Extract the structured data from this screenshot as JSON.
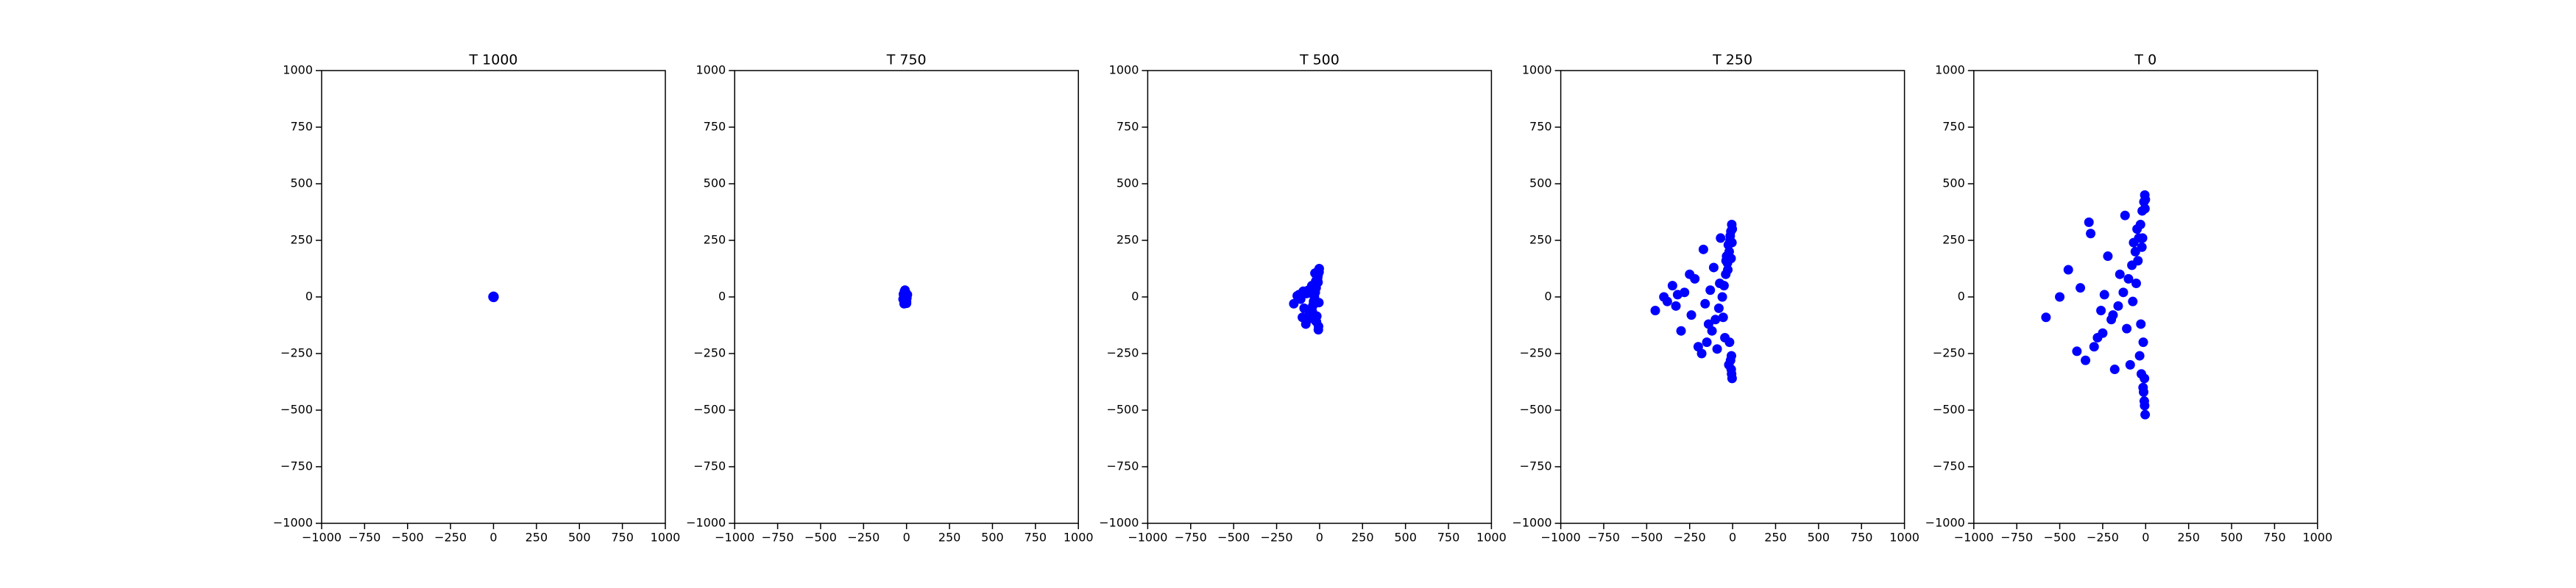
{
  "chart_data": [
    {
      "type": "scatter",
      "title": "T 1000",
      "color": "#0000ff",
      "x": [
        0,
        2,
        -2,
        1,
        -1,
        3,
        -3,
        0
      ],
      "y": [
        0,
        2,
        -1,
        -2,
        1,
        0,
        1,
        3
      ],
      "xlim": [
        -1000,
        1000
      ],
      "ylim": [
        -1000,
        1000
      ],
      "xticks": [
        {
          "value": -1000,
          "label": "−1000"
        },
        {
          "value": -750,
          "label": "−750"
        },
        {
          "value": -500,
          "label": "−500"
        },
        {
          "value": -250,
          "label": "−250"
        },
        0,
        250,
        500,
        750,
        1000
      ],
      "yticks": [
        {
          "value": -1000,
          "label": "−1000"
        },
        {
          "value": -750,
          "label": "−750"
        },
        {
          "value": -500,
          "label": "−500"
        },
        {
          "value": -250,
          "label": "−250"
        },
        0,
        250,
        500,
        750,
        1000
      ]
    },
    {
      "type": "scatter",
      "title": "T 750",
      "color": "#0000ff",
      "x": [
        -5,
        -10,
        -15,
        -20,
        0,
        5,
        -8,
        -12,
        -3,
        -18,
        -6,
        -14,
        2,
        -9,
        -4,
        0,
        -16,
        -11
      ],
      "y": [
        20,
        15,
        5,
        -10,
        -20,
        10,
        -25,
        25,
        0,
        12,
        -15,
        -30,
        -5,
        30,
        8,
        -28,
        -2,
        18
      ],
      "xlim": [
        -1000,
        1000
      ],
      "ylim": [
        -1000,
        1000
      ],
      "xticks": [
        {
          "value": -1000,
          "label": "−1000"
        },
        {
          "value": -750,
          "label": "−750"
        },
        {
          "value": -500,
          "label": "−500"
        },
        {
          "value": -250,
          "label": "−250"
        },
        0,
        250,
        500,
        750,
        1000
      ],
      "yticks": [
        {
          "value": -1000,
          "label": "−1000"
        },
        {
          "value": -750,
          "label": "−750"
        },
        {
          "value": -500,
          "label": "−500"
        },
        {
          "value": -250,
          "label": "−250"
        },
        0,
        250,
        500,
        750,
        1000
      ]
    },
    {
      "type": "scatter",
      "title": "T 500",
      "color": "#0000ff",
      "x": [
        -5,
        -8,
        -12,
        -15,
        -20,
        -25,
        -30,
        -35,
        -40,
        -50,
        -60,
        -70,
        -80,
        -100,
        -120,
        -150,
        -3,
        -6,
        -10,
        -18,
        -22,
        -28,
        -45,
        -55,
        -65,
        -90,
        -110,
        -130,
        -2,
        -7,
        -14,
        -24,
        -33,
        -42,
        -75,
        -95,
        -4,
        -9,
        -16,
        -27
      ],
      "y": [
        120,
        100,
        80,
        60,
        40,
        20,
        0,
        -20,
        -40,
        -60,
        -80,
        -100,
        -120,
        -90,
        10,
        -30,
        110,
        -130,
        90,
        -110,
        70,
        -90,
        50,
        -70,
        30,
        -50,
        -10,
        5,
        125,
        -145,
        85,
        -105,
        45,
        -65,
        15,
        25,
        -25,
        65,
        -85,
        105
      ],
      "xlim": [
        -1000,
        1000
      ],
      "ylim": [
        -1000,
        1000
      ],
      "xticks": [
        {
          "value": -1000,
          "label": "−1000"
        },
        {
          "value": -750,
          "label": "−750"
        },
        {
          "value": -500,
          "label": "−500"
        },
        {
          "value": -250,
          "label": "−250"
        },
        0,
        250,
        500,
        750,
        1000
      ],
      "yticks": [
        {
          "value": -1000,
          "label": "−1000"
        },
        {
          "value": -750,
          "label": "−750"
        },
        {
          "value": -500,
          "label": "−500"
        },
        {
          "value": -250,
          "label": "−250"
        },
        0,
        250,
        500,
        750,
        1000
      ]
    },
    {
      "type": "scatter",
      "title": "T 250",
      "color": "#0000ff",
      "x": [
        -5,
        -10,
        -15,
        -20,
        -30,
        -40,
        -50,
        -60,
        -80,
        -100,
        -120,
        -150,
        -180,
        -200,
        -250,
        -300,
        -350,
        -400,
        -450,
        -3,
        -8,
        -12,
        -25,
        -35,
        -45,
        -70,
        -90,
        -110,
        -140,
        -170,
        -220,
        -280,
        -330,
        -2,
        -6,
        -9,
        -18,
        -28,
        -55,
        -75,
        -130,
        -160,
        -240,
        -320,
        -380,
        -4,
        -7,
        -14,
        -22,
        -38
      ],
      "y": [
        320,
        290,
        250,
        200,
        150,
        100,
        50,
        0,
        -50,
        -100,
        -150,
        -200,
        -250,
        -220,
        100,
        -150,
        50,
        0,
        -60,
        -360,
        -320,
        -280,
        230,
        180,
        -180,
        260,
        -230,
        130,
        -120,
        210,
        80,
        20,
        -40,
        300,
        -340,
        170,
        -200,
        120,
        -90,
        60,
        30,
        -30,
        -80,
        10,
        -20,
        240,
        -260,
        270,
        -300,
        160
      ],
      "xlim": [
        -1000,
        1000
      ],
      "ylim": [
        -1000,
        1000
      ],
      "xticks": [
        {
          "value": -1000,
          "label": "−1000"
        },
        {
          "value": -750,
          "label": "−750"
        },
        {
          "value": -500,
          "label": "−500"
        },
        {
          "value": -250,
          "label": "−250"
        },
        0,
        250,
        500,
        750,
        1000
      ],
      "yticks": [
        {
          "value": -1000,
          "label": "−1000"
        },
        {
          "value": -750,
          "label": "−750"
        },
        {
          "value": -500,
          "label": "−500"
        },
        {
          "value": -250,
          "label": "−250"
        },
        0,
        250,
        500,
        750,
        1000
      ]
    },
    {
      "type": "scatter",
      "title": "T 0",
      "color": "#0000ff",
      "x": [
        -5,
        -10,
        -20,
        -30,
        -40,
        -60,
        -80,
        -100,
        -130,
        -160,
        -200,
        -250,
        -300,
        -350,
        -400,
        -450,
        -500,
        -580,
        -3,
        -8,
        -15,
        -25,
        -50,
        -70,
        -90,
        -120,
        -180,
        -220,
        -280,
        -330,
        -2,
        -6,
        -12,
        -18,
        -35,
        -45,
        -110,
        -150,
        -260,
        -380,
        -4,
        -7,
        -14,
        -22,
        -28,
        -55,
        -75,
        -190,
        -240,
        -320
      ],
      "y": [
        450,
        420,
        380,
        320,
        260,
        200,
        140,
        80,
        20,
        -40,
        -100,
        -160,
        -220,
        -280,
        -240,
        120,
        0,
        -90,
        -520,
        -460,
        -400,
        -340,
        300,
        240,
        -300,
        360,
        -320,
        180,
        -180,
        330,
        430,
        -480,
        -420,
        260,
        -260,
        160,
        -140,
        100,
        -60,
        40,
        390,
        -360,
        -200,
        220,
        -120,
        60,
        -20,
        -80,
        10,
        280
      ],
      "xlim": [
        -1000,
        1000
      ],
      "ylim": [
        -1000,
        1000
      ],
      "xticks": [
        {
          "value": -1000,
          "label": "−1000"
        },
        {
          "value": -750,
          "label": "−750"
        },
        {
          "value": -500,
          "label": "−500"
        },
        {
          "value": -250,
          "label": "−250"
        },
        0,
        250,
        500,
        750,
        1000
      ],
      "yticks": [
        {
          "value": -1000,
          "label": "−1000"
        },
        {
          "value": -750,
          "label": "−750"
        },
        {
          "value": -500,
          "label": "−500"
        },
        {
          "value": -250,
          "label": "−250"
        },
        0,
        250,
        500,
        750,
        1000
      ]
    }
  ]
}
